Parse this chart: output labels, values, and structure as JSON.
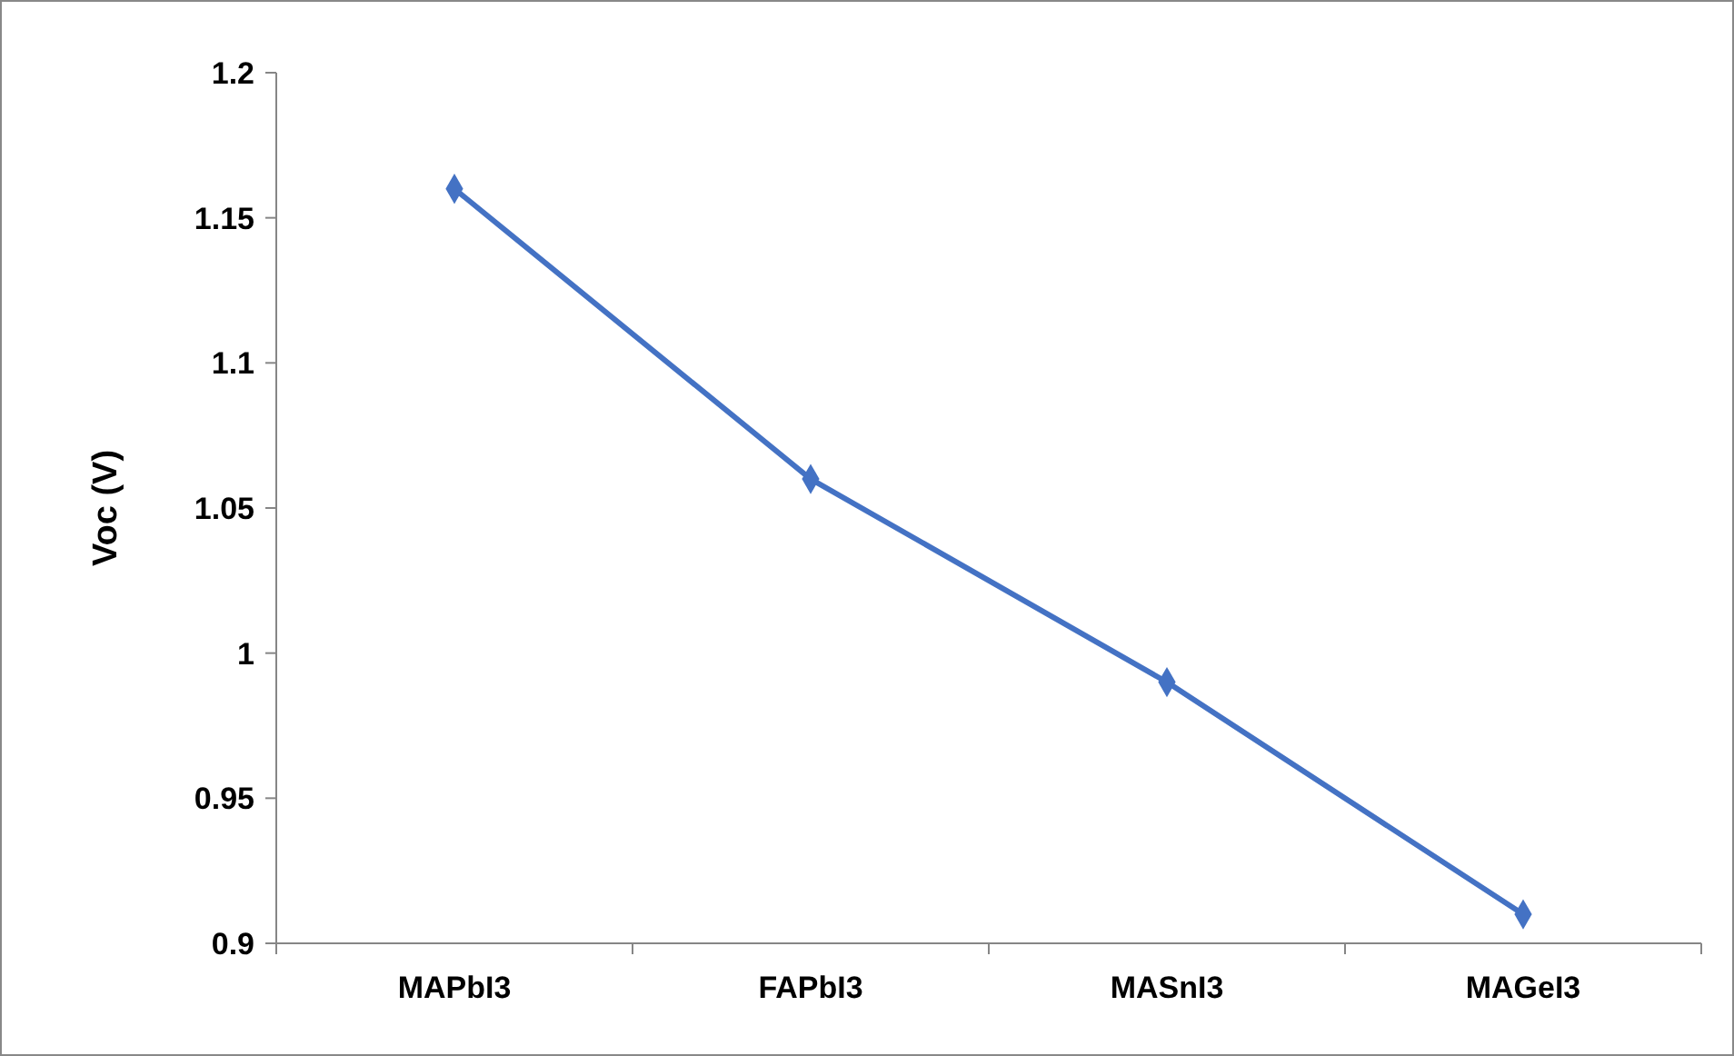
{
  "chart_data": {
    "type": "line",
    "ylabel": "Voc (V)",
    "categories": [
      "MAPbI3",
      "FAPbI3",
      "MASnI3",
      "MAGeI3"
    ],
    "series": [
      {
        "color": "#4472c4",
        "values": [
          1.16,
          1.06,
          0.99,
          0.91
        ]
      }
    ],
    "ylim": [
      0.9,
      1.2
    ],
    "yticks": [
      0.9,
      0.95,
      1,
      1.05,
      1.1,
      1.15,
      1.2
    ],
    "grid": false,
    "marker": "diamond",
    "line_style": "solid"
  }
}
